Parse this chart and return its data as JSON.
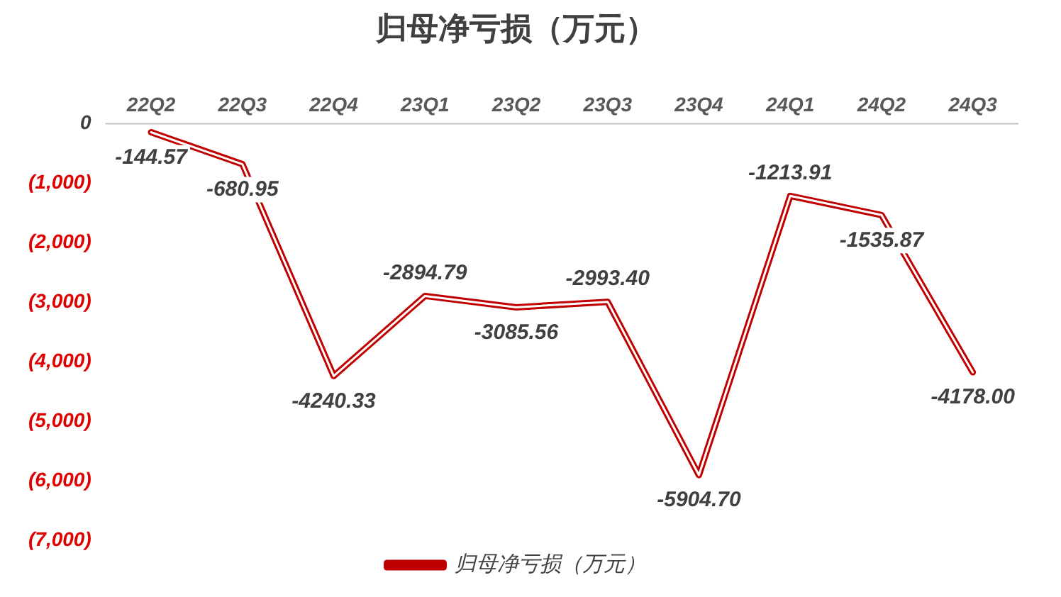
{
  "chart_data": {
    "type": "line",
    "title": "归母净亏损（万元）",
    "categories": [
      "22Q2",
      "22Q3",
      "22Q4",
      "23Q1",
      "23Q2",
      "23Q3",
      "23Q4",
      "24Q1",
      "24Q2",
      "24Q3"
    ],
    "series": [
      {
        "name": "归母净亏损（万元）",
        "color": "#c00000",
        "values": [
          -144.57,
          -680.95,
          -4240.33,
          -2894.79,
          -3085.56,
          -2993.4,
          -5904.7,
          -1213.91,
          -1535.87,
          -4178
        ],
        "value_labels": [
          "-144.57",
          "-680.95",
          "-4240.33",
          "-2894.79",
          "-3085.56",
          "-2993.40",
          "-5904.70",
          "-1213.91",
          "-1535.87",
          "-4178.00"
        ]
      }
    ],
    "ylim": [
      -7000,
      0
    ],
    "yticks": [
      {
        "value": -7000,
        "label": "(7,000)"
      },
      {
        "value": -6000,
        "label": "(6,000)"
      },
      {
        "value": -5000,
        "label": "(5,000)"
      },
      {
        "value": -4000,
        "label": "(4,000)"
      },
      {
        "value": -3000,
        "label": "(3,000)"
      },
      {
        "value": -2000,
        "label": "(2,000)"
      },
      {
        "value": -1000,
        "label": "(1,000)"
      },
      0
    ],
    "grid": false,
    "legend": "bottom",
    "marker": "none"
  }
}
